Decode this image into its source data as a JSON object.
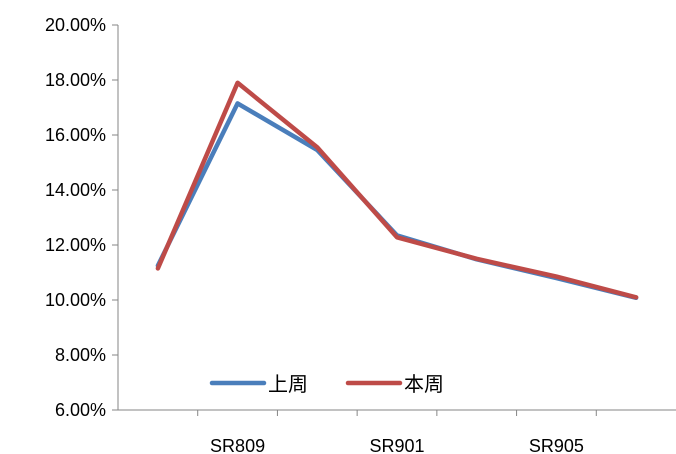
{
  "chart_data": {
    "type": "line",
    "title": "",
    "xlabel": "",
    "ylabel": "",
    "ylim": [
      0.06,
      0.2
    ],
    "y_ticks": [
      0.06,
      0.08,
      0.1,
      0.12,
      0.14,
      0.16,
      0.18,
      0.2
    ],
    "y_tick_labels": [
      "6.00%",
      "8.00%",
      "10.00%",
      "12.00%",
      "14.00%",
      "16.00%",
      "18.00%",
      "20.00%"
    ],
    "categories": [
      "",
      "SR809",
      "",
      "SR901",
      "",
      "SR905",
      ""
    ],
    "x_tick_labels": [
      "SR809",
      "SR901",
      "SR905"
    ],
    "grid": false,
    "legend_position": "bottom-inside",
    "series": [
      {
        "name": "上周",
        "color": "#4a7ebb",
        "values": [
          0.1125,
          0.1715,
          0.1545,
          0.1235,
          0.1148,
          0.108,
          0.1008
        ]
      },
      {
        "name": "本周",
        "color": "#be4b48",
        "values": [
          0.1115,
          0.179,
          0.1555,
          0.1228,
          0.115,
          0.1085,
          0.101
        ]
      }
    ]
  }
}
